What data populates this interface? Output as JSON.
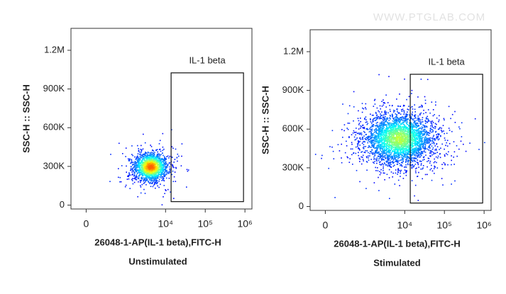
{
  "watermark": "WWW.PTGLAB.COM",
  "chart_data": [
    {
      "type": "density-scatter",
      "caption": "Unstimulated",
      "x_label": "26048-1-AP(IL-1 beta),FITC-H",
      "y_label": "SSC-H :: SSC-H",
      "x_scale": "biexponential",
      "xlim": [
        -200,
        1500000
      ],
      "ylim": [
        -30000,
        1370000
      ],
      "xticks": [
        0,
        {
          "value": 10000,
          "label": "10⁴"
        },
        {
          "value": 100000,
          "label": "10⁵"
        },
        {
          "value": 1000000,
          "label": "10⁶"
        }
      ],
      "yticks": [
        0,
        {
          "value": 300000,
          "label": "300K"
        },
        {
          "value": 600000,
          "label": "600K"
        },
        {
          "value": 900000,
          "label": "900K"
        },
        {
          "value": 1200000,
          "label": "1.2M"
        }
      ],
      "gate": {
        "label": "IL-1 beta",
        "x": [
          13800,
          920000
        ],
        "y": [
          27000,
          1025000
        ]
      },
      "population": {
        "x_center": 4100,
        "y_center": 300000
      }
    },
    {
      "type": "density-scatter",
      "caption": "Stimulated",
      "x_label": "26048-1-AP(IL-1 beta),FITC-H",
      "y_label": "SSC-H :: SSC-H",
      "x_scale": "biexponential",
      "xlim": [
        -200,
        1500000
      ],
      "ylim": [
        -30000,
        1370000
      ],
      "xticks": [
        0,
        {
          "value": 10000,
          "label": "10⁴"
        },
        {
          "value": 100000,
          "label": "10⁵"
        },
        {
          "value": 1000000,
          "label": "10⁶"
        }
      ],
      "yticks": [
        0,
        {
          "value": 300000,
          "label": "300K"
        },
        {
          "value": 600000,
          "label": "600K"
        },
        {
          "value": 900000,
          "label": "900K"
        },
        {
          "value": 1200000,
          "label": "1.2M"
        }
      ],
      "gate": {
        "label": "IL-1 beta",
        "x": [
          13800,
          920000
        ],
        "y": [
          27000,
          1025000
        ]
      },
      "population": {
        "x_center": 7000,
        "y_center": 530000
      }
    }
  ]
}
